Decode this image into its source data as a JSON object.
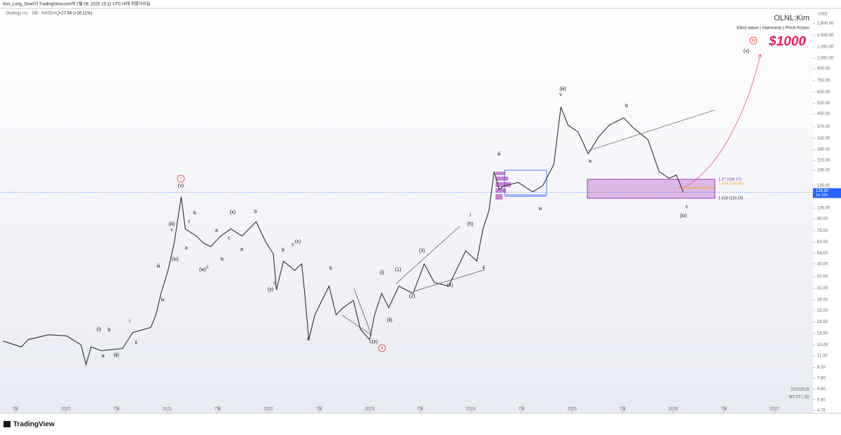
{
  "header": {
    "publisher": "Kim_Long_Short이 TradingView.com에 2월 09, 2026 15:11 UTC+9에 퍼블리쉬됨",
    "symbol": "Strategy Inc · 3일 · NASDAQ",
    "change": "+27.94 (+26.11%)",
    "currency": "USD",
    "logo": "TradingView"
  },
  "chart_data": {
    "type": "line",
    "title": "OLNL:Kim",
    "subtitle": "Elliot wave  |  Harmonic  |  Price Action",
    "target_label": "$1000",
    "footnote": "10/2/2026",
    "footnote2": "MSTR  |  3D",
    "color": "#2f2f33",
    "log_scale": true,
    "grid": false,
    "x": [
      2019.38,
      2019.56,
      2019.63,
      2019.83,
      2020.01,
      2020.15,
      2020.2,
      2020.25,
      2020.35,
      2020.56,
      2020.66,
      2020.84,
      2020.89,
      2020.94,
      2021.01,
      2021.07,
      2021.14,
      2021.18,
      2021.29,
      2021.36,
      2021.43,
      2021.53,
      2021.63,
      2021.74,
      2021.81,
      2021.88,
      2021.98,
      2022.05,
      2022.08,
      2022.15,
      2022.26,
      2022.33,
      2022.36,
      2022.4,
      2022.46,
      2022.53,
      2022.6,
      2022.67,
      2022.74,
      2022.84,
      2022.91,
      2023.0,
      2023.05,
      2023.12,
      2023.19,
      2023.29,
      2023.43,
      2023.54,
      2023.64,
      2023.78,
      2023.85,
      2023.95,
      2024.06,
      2024.12,
      2024.18,
      2024.23,
      2024.28,
      2024.33,
      2024.47,
      2024.61,
      2024.71,
      2024.82,
      2024.89,
      2024.96,
      2025.06,
      2025.16,
      2025.27,
      2025.37,
      2025.51,
      2025.61,
      2025.75,
      2025.86,
      2025.96,
      2026.03,
      2026.08,
      2026.1
    ],
    "values": [
      13.8,
      12.6,
      14.1,
      15.2,
      14.9,
      13.0,
      9.6,
      12.6,
      11.9,
      12.3,
      15.7,
      17.0,
      20.6,
      28.6,
      40.8,
      62,
      126,
      77,
      69,
      62,
      58.6,
      69,
      77,
      69,
      77,
      86,
      62,
      52.5,
      30.3,
      47,
      40.8,
      45,
      28.6,
      14.1,
      20.6,
      25.7,
      32,
      20.6,
      23,
      25.7,
      16.5,
      14.1,
      20.6,
      28.6,
      23,
      32,
      28.6,
      45,
      33.8,
      32,
      40,
      55,
      47,
      77,
      102,
      186,
      141,
      149,
      157,
      136,
      149,
      207,
      500,
      379,
      340,
      244,
      321,
      379,
      423,
      360,
      304,
      186,
      167,
      176,
      146,
      134.9
    ],
    "last_price": {
      "value": 134.9,
      "label": "134.90"
    },
    "countdown": "1d 15h",
    "xlim": [
      2019.35,
      2027.38
    ],
    "ylim": [
      4.55,
      2270
    ],
    "xticks": [
      {
        "value": 2019.5,
        "label": "7월"
      },
      2020,
      {
        "value": 2020.5,
        "label": "7월"
      },
      2021,
      {
        "value": 2021.5,
        "label": "7월"
      },
      2022,
      {
        "value": 2022.5,
        "label": "7월"
      },
      2023,
      {
        "value": 2023.5,
        "label": "7월"
      },
      2024,
      {
        "value": 2024.5,
        "label": "7월"
      },
      2025,
      {
        "value": 2025.5,
        "label": "7월"
      },
      2026,
      {
        "value": 2026.5,
        "label": "7월"
      },
      2027
    ],
    "yticks": [
      {
        "value": 1800,
        "label": "1,800.00"
      },
      {
        "value": 1500,
        "label": "1,500.00"
      },
      {
        "value": 1260,
        "label": "1,260.00"
      },
      {
        "value": 1060,
        "label": "1,060.00"
      },
      {
        "value": 900,
        "label": "900.00"
      },
      {
        "value": 750,
        "label": "750.00"
      },
      {
        "value": 630,
        "label": "630.00"
      },
      {
        "value": 530,
        "label": "530.00"
      },
      {
        "value": 450,
        "label": "450.00"
      },
      {
        "value": 370,
        "label": "370.00"
      },
      {
        "value": 310,
        "label": "310.00"
      },
      {
        "value": 260,
        "label": "260.00"
      },
      {
        "value": 220,
        "label": "220.00"
      },
      {
        "value": 190,
        "label": "190.00"
      },
      {
        "value": 150,
        "label": "150.00"
      },
      {
        "value": 106,
        "label": "106.00"
      },
      {
        "value": 90,
        "label": "90.00"
      },
      {
        "value": 75,
        "label": "75.00"
      },
      {
        "value": 63,
        "label": "63.00"
      },
      {
        "value": 53,
        "label": "53.00"
      },
      {
        "value": 45,
        "label": "45.00"
      },
      {
        "value": 37,
        "label": "37.00"
      },
      {
        "value": 31,
        "label": "31.00"
      },
      {
        "value": 26,
        "label": "26.00"
      },
      {
        "value": 22,
        "label": "22.00"
      },
      {
        "value": 18.5,
        "label": "18.50"
      },
      {
        "value": 15.5,
        "label": "15.50"
      },
      {
        "value": 13,
        "label": "13.00"
      },
      {
        "value": 11,
        "label": "11.00"
      },
      {
        "value": 9.2,
        "label": "9.20"
      },
      {
        "value": 7.8,
        "label": "7.80"
      },
      {
        "value": 6.6,
        "label": "6.60"
      },
      {
        "value": 5.6,
        "label": "5.60"
      },
      {
        "value": 4.75,
        "label": "4.75"
      }
    ],
    "fib_labels": [
      "1.27 (156.17)",
      "1.414 (136.19)",
      "1.618 (116.15)"
    ],
    "annotations": [
      "i",
      "(v)",
      "(iii)",
      "v",
      "(iv)",
      "iii",
      "iv",
      "i",
      "(i)",
      "b",
      "a",
      "(ii)",
      "ii",
      "a",
      "b",
      "c",
      "a",
      "(x)",
      "b",
      "c",
      "a",
      "b",
      "(w)",
      "c",
      "b",
      "c",
      "(x)",
      "(y)",
      "c",
      "a",
      "b",
      "c(z)",
      "ii",
      "(ii)",
      "(i)",
      "(1)",
      "(3)",
      "(2)",
      "(4)",
      "(5)",
      "I",
      "ii",
      "iii",
      "iv",
      "(iii)",
      "v",
      "a",
      "b",
      "c",
      "(iv)",
      "(v)",
      "iii"
    ]
  }
}
